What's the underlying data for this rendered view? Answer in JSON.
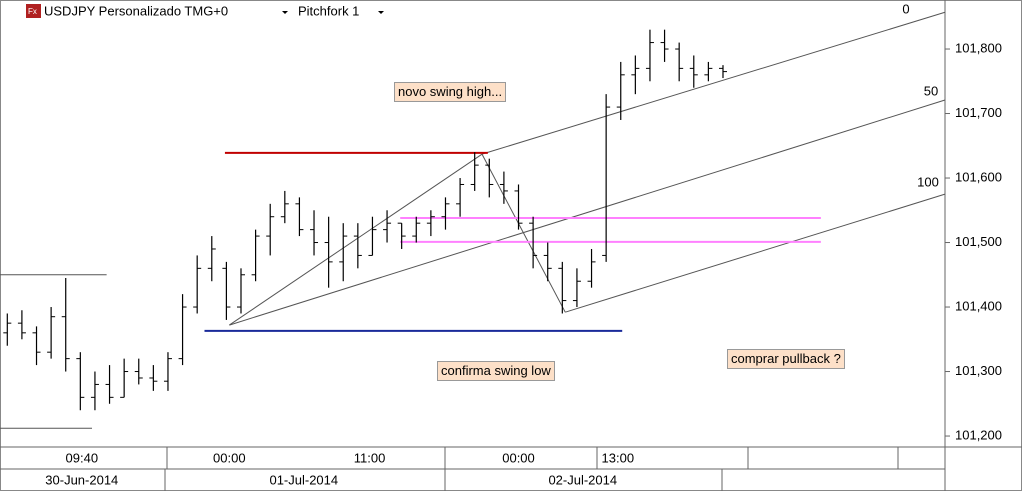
{
  "header": {
    "icon": "Fx"
  },
  "chart_data": {
    "type": "ohlc",
    "title": "USDJPY Personalizado TMG+0",
    "study": "Pitchfork 1",
    "color": "#000000",
    "open": [
      101360,
      101375,
      101360,
      101330,
      101385,
      101320,
      101260,
      101280,
      101260,
      101300,
      101290,
      101285,
      101320,
      101400,
      101460,
      101460,
      101400,
      101450,
      101510,
      101540,
      101560,
      101520,
      101500,
      101470,
      101510,
      101480,
      101520,
      101530,
      101510,
      101530,
      101540,
      101560,
      101590,
      101620,
      101590,
      101580,
      101530,
      101480,
      101460,
      101410,
      101440,
      101480,
      101710,
      101760,
      101770,
      101810,
      101800,
      101770,
      101760,
      101770
    ],
    "high": [
      101390,
      101395,
      101370,
      101400,
      101445,
      101330,
      101300,
      101310,
      101320,
      101320,
      101310,
      101330,
      101420,
      101480,
      101510,
      101470,
      101460,
      101520,
      101560,
      101580,
      101570,
      101550,
      101540,
      101530,
      101530,
      101540,
      101550,
      101530,
      101540,
      101550,
      101570,
      101600,
      101640,
      101630,
      101610,
      101590,
      101540,
      101500,
      101470,
      101460,
      101490,
      101730,
      101780,
      101790,
      101830,
      101830,
      101810,
      101790,
      101780,
      101775
    ],
    "low": [
      101340,
      101350,
      101310,
      101320,
      101300,
      101240,
      101240,
      101250,
      101260,
      101280,
      101270,
      101270,
      101310,
      101390,
      101440,
      101380,
      101390,
      101440,
      101480,
      101530,
      101510,
      101480,
      101430,
      101440,
      101460,
      101480,
      101500,
      101490,
      101500,
      101510,
      101520,
      101540,
      101580,
      101570,
      101560,
      101520,
      101460,
      101440,
      101390,
      101400,
      101430,
      101470,
      101690,
      101730,
      101750,
      101780,
      101750,
      101740,
      101750,
      101755
    ],
    "close": [
      101375,
      101360,
      101330,
      101385,
      101320,
      101260,
      101280,
      101260,
      101300,
      101290,
      101285,
      101320,
      101400,
      101460,
      101490,
      101400,
      101450,
      101510,
      101540,
      101560,
      101520,
      101500,
      101470,
      101510,
      101480,
      101520,
      101530,
      101510,
      101530,
      101540,
      101560,
      101590,
      101620,
      101590,
      101580,
      101530,
      101480,
      101460,
      101410,
      101440,
      101470,
      101710,
      101760,
      101770,
      101810,
      101800,
      101770,
      101760,
      101770,
      101765
    ],
    "xlim": [
      0,
      64.7
    ],
    "ylim": [
      101183,
      101876
    ],
    "xticks": [
      {
        "value": 5.6,
        "label": "09:40"
      },
      {
        "value": 15.7,
        "label": "00:00"
      },
      {
        "value": 25.3,
        "label": "11:00"
      },
      {
        "value": 35.5,
        "label": "00:00"
      },
      {
        "value": 42.3,
        "label": "13:00"
      }
    ],
    "date_ticks": [
      {
        "value": 5.6,
        "label": "30-Jun-2014"
      },
      {
        "value": 20.8,
        "label": "01-Jul-2014"
      },
      {
        "value": 39.9,
        "label": "02-Jul-2014"
      }
    ],
    "yticks": [
      {
        "value": 101200,
        "label": "101,200"
      },
      {
        "value": 101300,
        "label": "101,300"
      },
      {
        "value": 101400,
        "label": "101,400"
      },
      {
        "value": 101500,
        "label": "101,500"
      },
      {
        "value": 101600,
        "label": "101,600"
      },
      {
        "value": 101700,
        "label": "101,700"
      },
      {
        "value": 101800,
        "label": "101,800"
      }
    ],
    "drawings": [
      {
        "color": "#555555",
        "x": [
          33.0,
          64.7
        ],
        "y": [
          101637,
          101857
        ]
      },
      {
        "color": "#555555",
        "x": [
          15.7,
          64.7
        ],
        "y": [
          101372,
          101721
        ]
      },
      {
        "color": "#555555",
        "x": [
          38.7,
          64.7
        ],
        "y": [
          101392,
          101575
        ]
      },
      {
        "color": "#555555",
        "x": [
          15.7,
          33.0
        ],
        "y": [
          101372,
          101637
        ]
      },
      {
        "color": "#555555",
        "x": [
          33.0,
          38.7
        ],
        "y": [
          101637,
          101392
        ]
      },
      {
        "color": "#c00000",
        "x": [
          15.4,
          33.4
        ],
        "y": [
          101639,
          101639
        ]
      },
      {
        "color": "#1a2a9a",
        "x": [
          14.0,
          42.6
        ],
        "y": [
          101363,
          101363
        ]
      },
      {
        "color": "#ff80ff",
        "x": [
          27.4,
          56.2
        ],
        "y": [
          101538,
          101538
        ]
      },
      {
        "color": "#ff80ff",
        "x": [
          27.4,
          56.2
        ],
        "y": [
          101501,
          101501
        ]
      },
      {
        "color": "#555555",
        "x": [
          0,
          7.3
        ],
        "y": [
          101450,
          101450
        ]
      },
      {
        "color": "#555555",
        "x": [
          0,
          6.3
        ],
        "y": [
          101212,
          101212
        ]
      }
    ],
    "fork_levels": [
      0,
      50,
      100
    ],
    "annotations": [
      "novo swing high...",
      "confirma swing low",
      "comprar pullback ?"
    ]
  }
}
